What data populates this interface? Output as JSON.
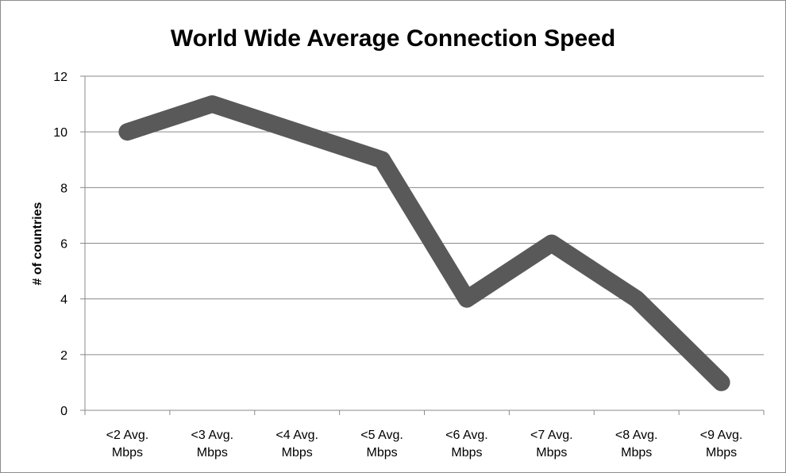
{
  "chart_data": {
    "type": "line",
    "title": "World Wide Average Connection Speed",
    "xlabel": "",
    "ylabel": "# of countries",
    "categories": [
      [
        "<2 Avg.",
        "Mbps"
      ],
      [
        "<3 Avg.",
        "Mbps"
      ],
      [
        "<4 Avg.",
        "Mbps"
      ],
      [
        "<5 Avg.",
        "Mbps"
      ],
      [
        "<6 Avg.",
        "Mbps"
      ],
      [
        "<7 Avg.",
        "Mbps"
      ],
      [
        "<8 Avg.",
        "Mbps"
      ],
      [
        "<9 Avg.",
        "Mbps"
      ]
    ],
    "series": [
      {
        "values": [
          10,
          11,
          10,
          9,
          4,
          6,
          4,
          1
        ],
        "color": "#595959"
      }
    ],
    "ylim": [
      0,
      12
    ],
    "yticks": [
      0,
      2,
      4,
      6,
      8,
      10,
      12
    ],
    "grid": true,
    "legend": "none"
  }
}
